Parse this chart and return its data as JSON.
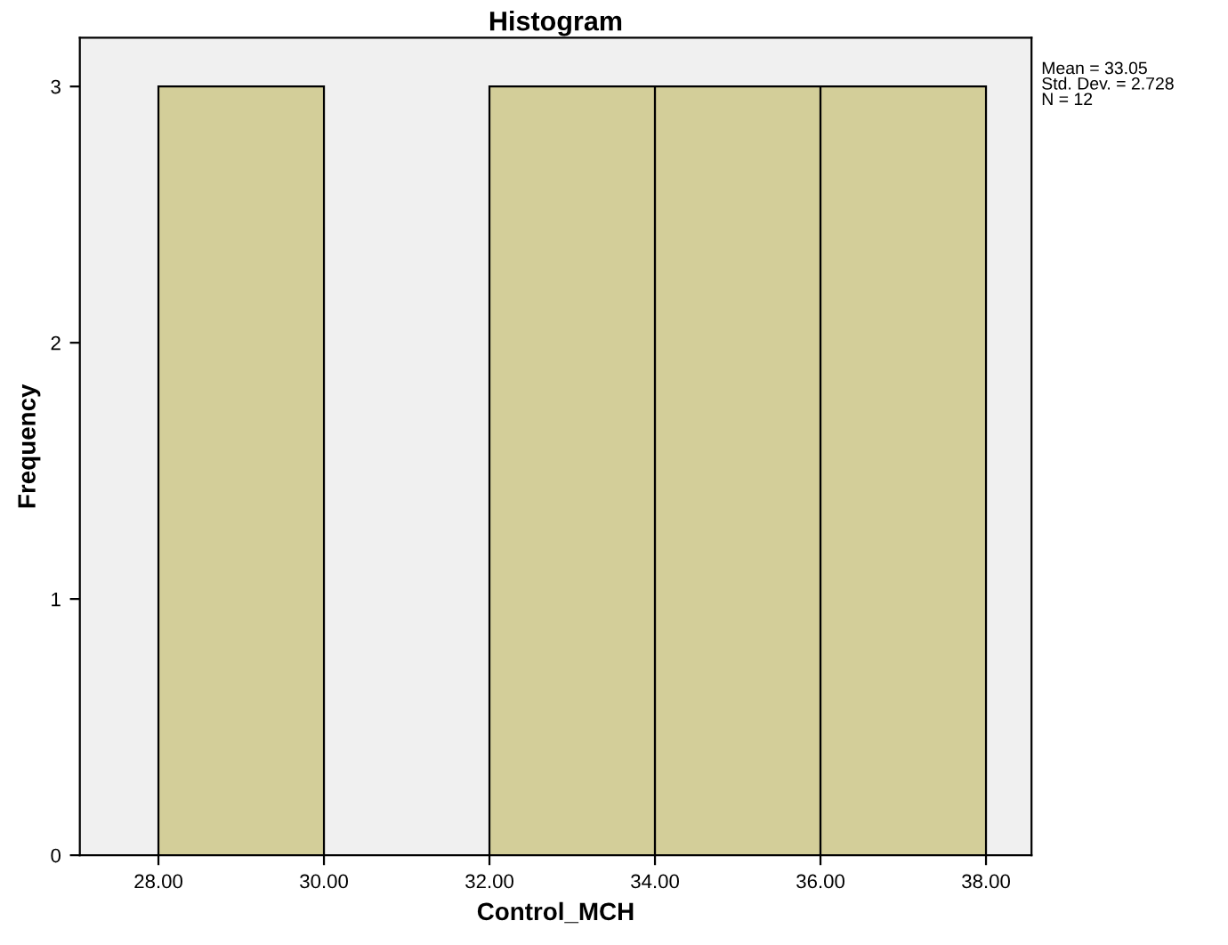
{
  "chart_data": {
    "type": "histogram",
    "title": "Histogram",
    "xlabel": "Control_MCH",
    "ylabel": "Frequency",
    "bins": [
      28,
      30,
      32,
      34,
      36,
      38
    ],
    "values": [
      3,
      0,
      3,
      3,
      3
    ],
    "color": "#d3ce99",
    "xlim": [
      27.05,
      38.55
    ],
    "xticks": [
      {
        "value": 28,
        "label": "28.00"
      },
      {
        "value": 30,
        "label": "30.00"
      },
      {
        "value": 32,
        "label": "32.00"
      },
      {
        "value": 34,
        "label": "34.00"
      },
      {
        "value": 36,
        "label": "36.00"
      },
      {
        "value": 38,
        "label": "38.00"
      }
    ],
    "ylim": [
      0,
      3.19
    ],
    "yticks": [
      0,
      1,
      2,
      3
    ],
    "annotations": [
      "Mean = 33.05",
      "Std. Dev. = 2.728",
      "N = 12"
    ]
  }
}
